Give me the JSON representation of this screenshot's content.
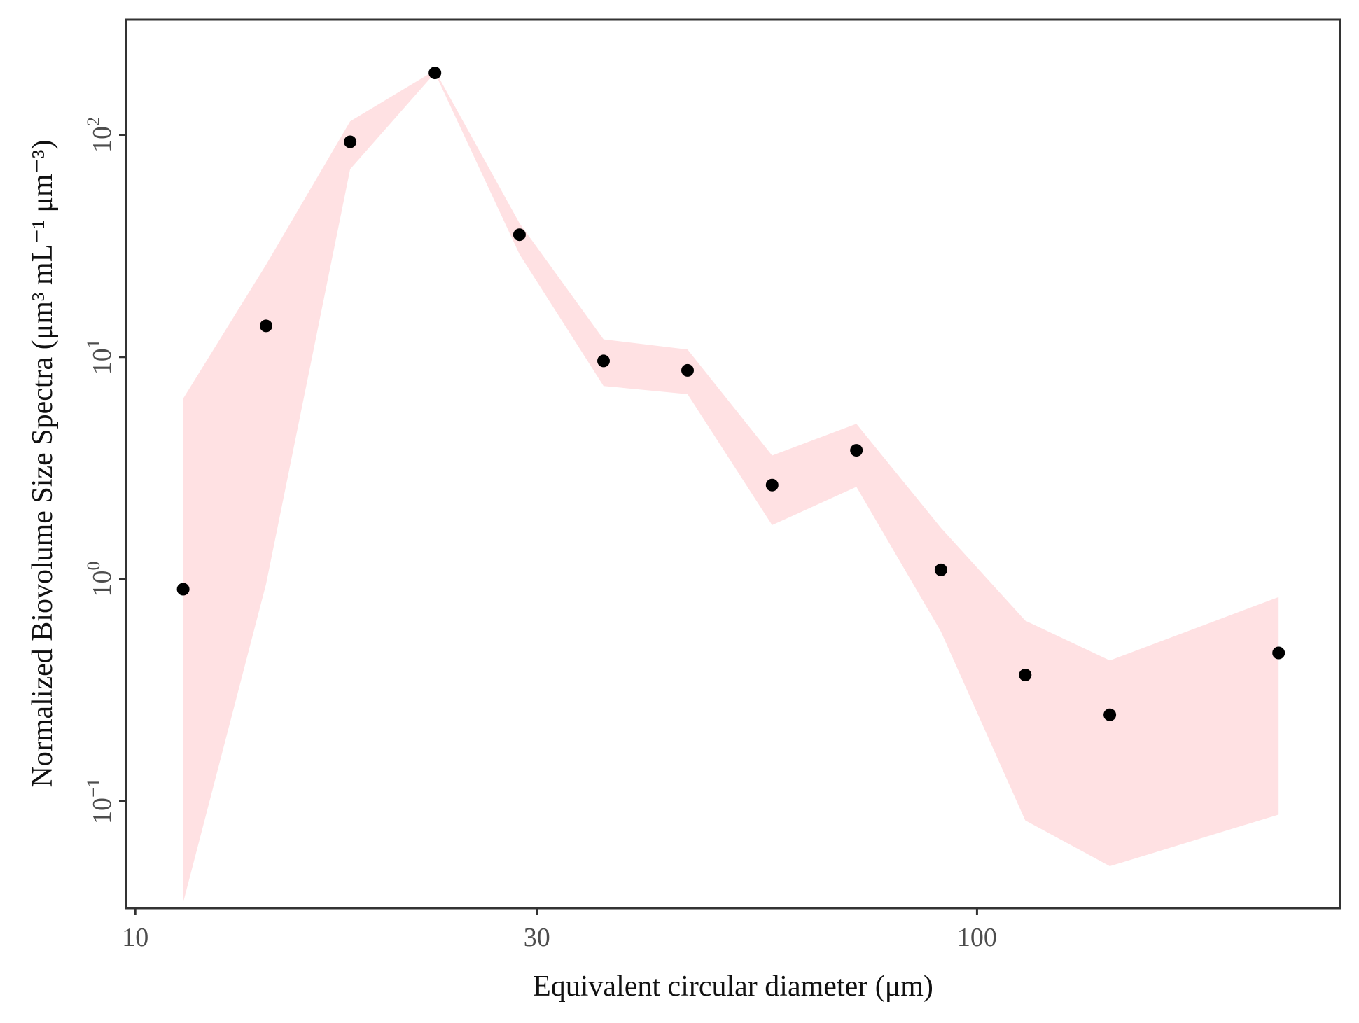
{
  "chart_data": {
    "type": "scatter",
    "title": "",
    "xlabel": "Equivalent circular diameter (μm)",
    "ylabel": "Normalized Biovolume Size Spectra (μm³ mL⁻¹ μm⁻³)",
    "x_scale": "log",
    "y_scale": "log",
    "xlim": [
      9.75,
      270
    ],
    "ylim": [
      0.033,
      330
    ],
    "x_ticks": [
      {
        "value": 10,
        "label": "10"
      },
      {
        "value": 30,
        "label": "30"
      },
      {
        "value": 100,
        "label": "100"
      }
    ],
    "y_ticks": [
      {
        "value": 0.1,
        "label": "10",
        "exp": "−1"
      },
      {
        "value": 1,
        "label": "10",
        "exp": "0"
      },
      {
        "value": 10,
        "label": "10",
        "exp": "1"
      },
      {
        "value": 100,
        "label": "10",
        "exp": "2"
      }
    ],
    "x": [
      11.4,
      14.3,
      18.0,
      22.7,
      28.6,
      36.0,
      45.3,
      57.1,
      71.9,
      90.6,
      114.1,
      143.8,
      228.2
    ],
    "y": [
      0.9,
      13.8,
      93,
      190,
      35.5,
      9.6,
      8.7,
      2.65,
      3.8,
      1.1,
      0.37,
      0.245,
      0.465
    ],
    "lower": [
      0.035,
      0.95,
      70,
      190,
      29,
      7.4,
      6.8,
      1.75,
      2.6,
      0.58,
      0.082,
      0.051,
      0.087
    ],
    "upper": [
      6.5,
      26,
      115,
      195,
      40,
      12,
      10.8,
      3.6,
      5.0,
      1.7,
      0.65,
      0.43,
      0.83
    ],
    "grid": false,
    "legend": "none",
    "colors": {
      "points": "#000000",
      "band": "#ffe1e3",
      "axis": "#333333",
      "tick_text": "#4d4d4d",
      "label_text": "#111111"
    }
  }
}
